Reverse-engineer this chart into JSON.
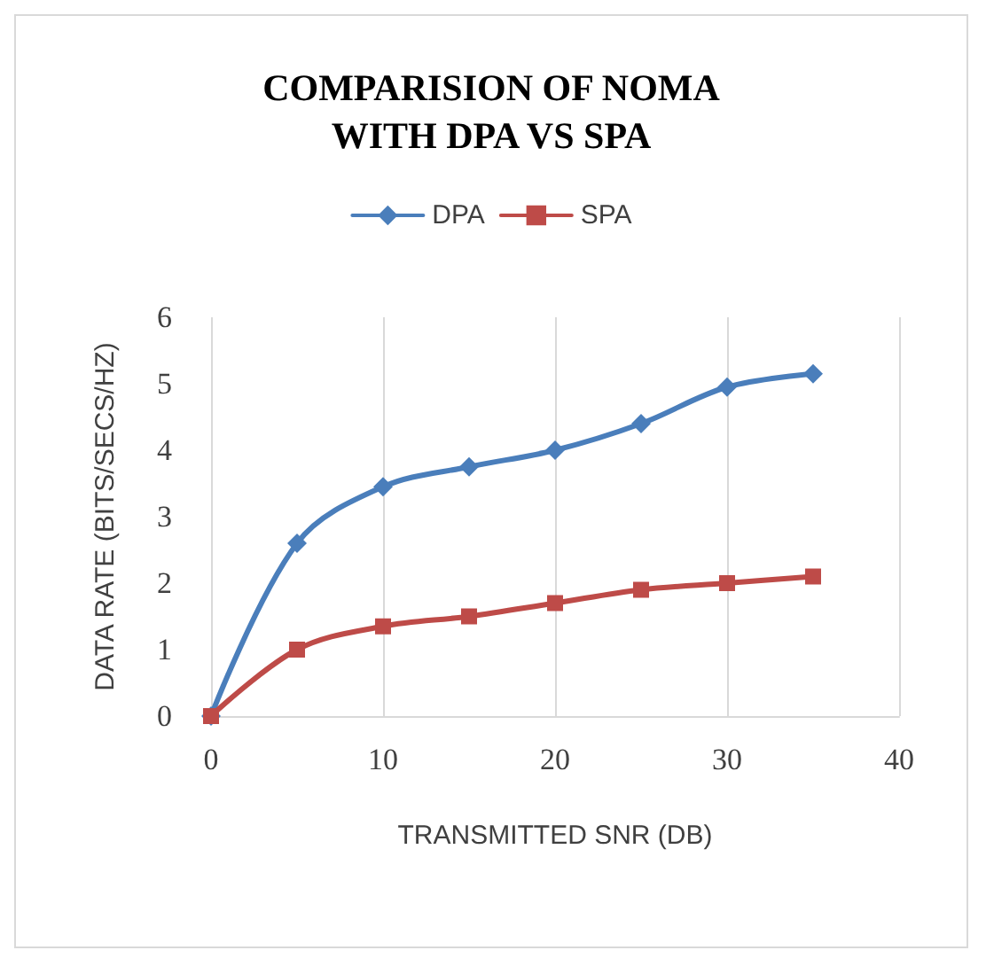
{
  "chart_data": {
    "type": "line",
    "title": "COMPARISION OF NOMA\nWITH DPA VS SPA",
    "xlabel": "TRANSMITTED SNR (DB)",
    "ylabel": "DATA RATE (BITS/SECS/HZ)",
    "x": [
      0,
      5,
      10,
      15,
      20,
      25,
      30,
      35
    ],
    "series": [
      {
        "name": "DPA",
        "color": "#4a7ebb",
        "marker": "diamond",
        "values": [
          0,
          2.6,
          3.45,
          3.75,
          4.0,
          4.4,
          4.95,
          5.15
        ]
      },
      {
        "name": "SPA",
        "color": "#be4b48",
        "marker": "square",
        "values": [
          0,
          1.0,
          1.35,
          1.5,
          1.7,
          1.9,
          2.0,
          2.1
        ]
      }
    ],
    "xlim": [
      0,
      40
    ],
    "xticks": [
      0,
      10,
      20,
      30,
      40
    ],
    "ylim": [
      0,
      6
    ],
    "yticks": [
      0,
      1,
      2,
      3,
      4,
      5,
      6
    ],
    "grid": "x",
    "legend": "top",
    "line_style": "solid"
  }
}
